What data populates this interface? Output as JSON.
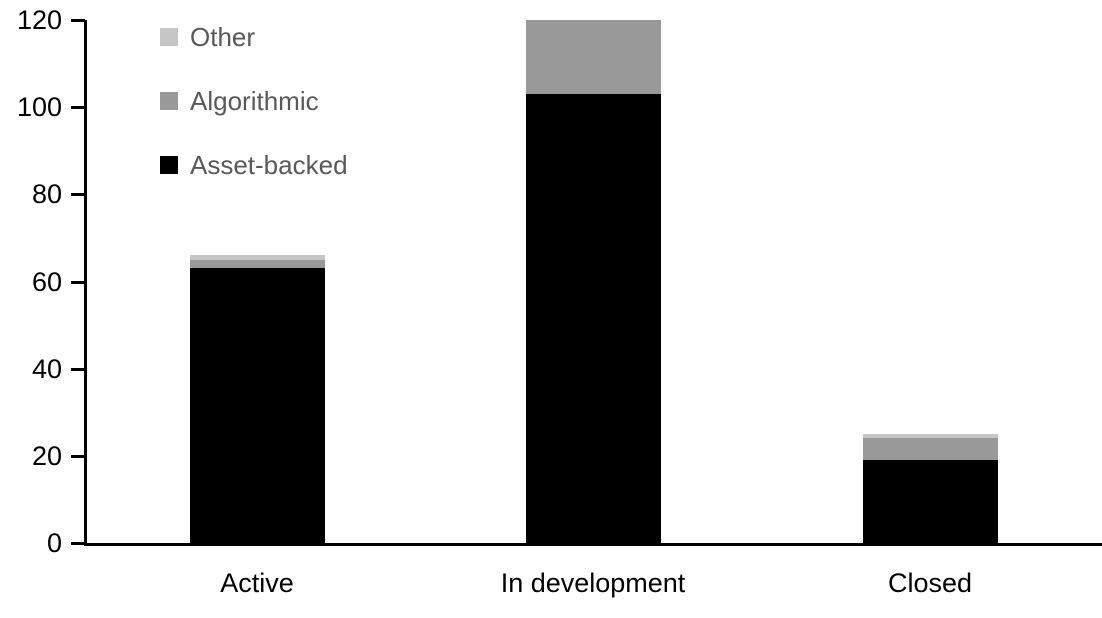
{
  "chart_data": {
    "type": "bar",
    "stacked": true,
    "title": "",
    "xlabel": "",
    "ylabel": "",
    "categories": [
      "Active",
      "In development",
      "Closed"
    ],
    "series": [
      {
        "name": "Asset-backed",
        "color": "#000000",
        "values": [
          63,
          103,
          19
        ]
      },
      {
        "name": "Algorithmic",
        "color": "#999999",
        "values": [
          2,
          17,
          5
        ]
      },
      {
        "name": "Other",
        "color": "#c6c6c6",
        "values": [
          1,
          0,
          1
        ]
      }
    ],
    "totals": [
      66,
      120,
      25
    ],
    "ylim": [
      0,
      120
    ],
    "yticks": [
      0,
      20,
      40,
      60,
      80,
      100,
      120
    ],
    "grid": false,
    "legend": {
      "position": "top-left-inside",
      "entries": [
        {
          "label": "Other",
          "color": "#c6c6c6"
        },
        {
          "label": "Algorithmic",
          "color": "#999999"
        },
        {
          "label": "Asset-backed",
          "color": "#000000"
        }
      ]
    },
    "colors": {
      "axis": "#000000",
      "tick_label": "#000000",
      "category_label": "#000000",
      "legend_text": "#595959"
    }
  }
}
